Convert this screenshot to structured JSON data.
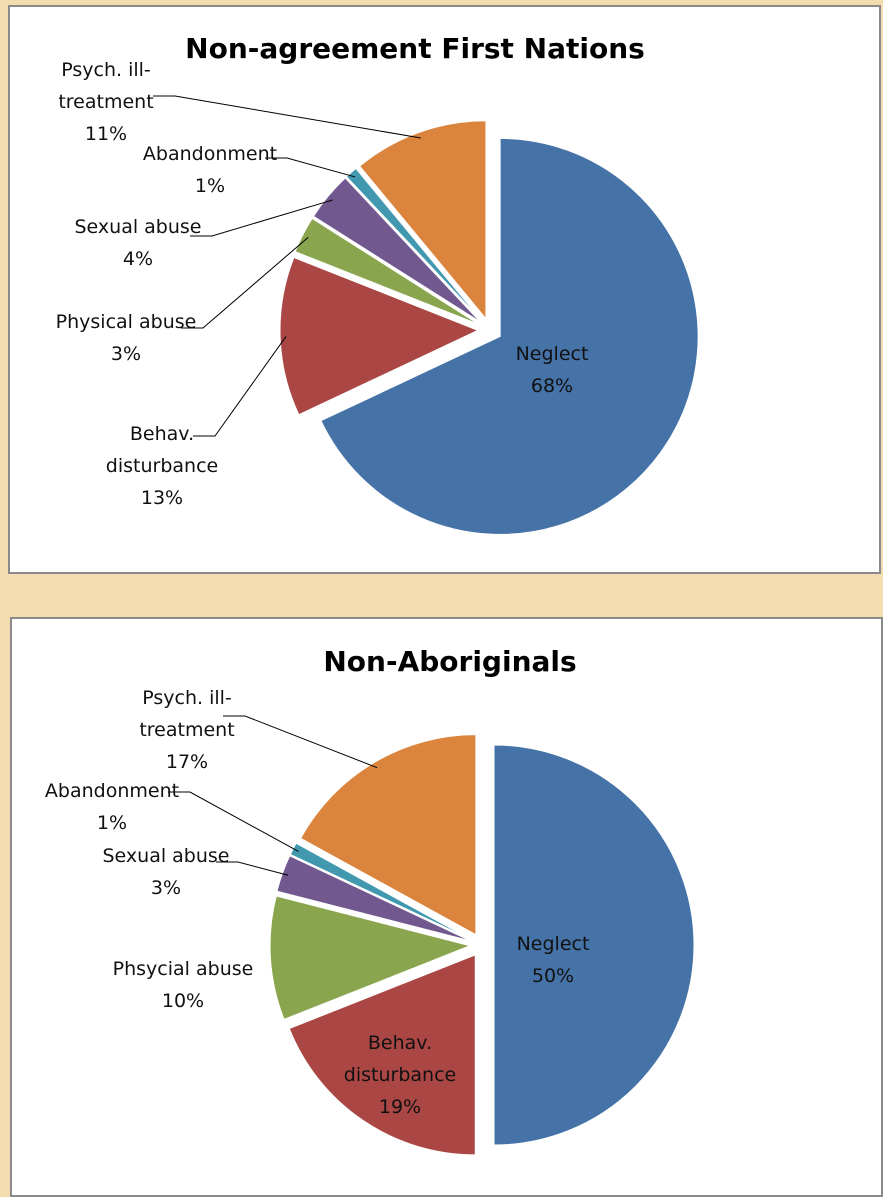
{
  "chart_data": [
    {
      "type": "pie",
      "title": "Non-agreement First Nations",
      "categories": [
        "Neglect",
        "Behav. disturbance",
        "Physical abuse",
        "Sexual abuse",
        "Abandonment",
        "Psych. ill-treatment"
      ],
      "values": [
        68,
        13,
        3,
        4,
        1,
        11
      ],
      "value_labels": [
        "68%",
        "13%",
        "3%",
        "4%",
        "1%",
        "11%"
      ],
      "colors": [
        "#4572a7",
        "#aa4643",
        "#89a54e",
        "#71588f",
        "#4198af",
        "#db843d"
      ]
    },
    {
      "type": "pie",
      "title": "Non-Aboriginals",
      "categories": [
        "Neglect",
        "Behav. disturbance",
        "Phsycial abuse",
        "Sexual abuse",
        "Abandonment",
        "Psych. ill-treatment"
      ],
      "values": [
        50,
        19,
        10,
        3,
        1,
        17
      ],
      "value_labels": [
        "50%",
        "19%",
        "10%",
        "3%",
        "1%",
        "17%"
      ],
      "colors": [
        "#4572a7",
        "#aa4643",
        "#89a54e",
        "#71588f",
        "#4198af",
        "#db843d"
      ]
    }
  ]
}
